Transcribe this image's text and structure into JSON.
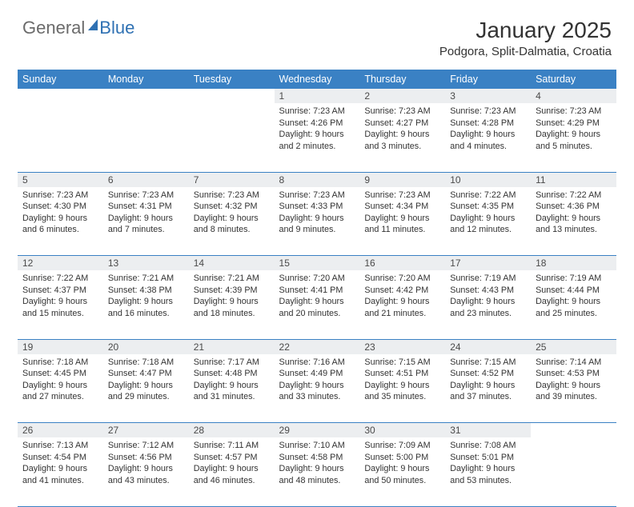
{
  "logo": {
    "part1": "General",
    "part2": "Blue"
  },
  "title": "January 2025",
  "location": "Podgora, Split-Dalmatia, Croatia",
  "colors": {
    "header_bg": "#3a81c4",
    "header_text": "#ffffff",
    "daynum_bg": "#eceef0",
    "text": "#333333",
    "logo_gray": "#6b6b6b",
    "logo_blue": "#2f71b3",
    "row_divider": "#3a81c4",
    "background": "#ffffff"
  },
  "typography": {
    "title_fontsize": 28,
    "location_fontsize": 15,
    "header_fontsize": 12.5,
    "daynum_fontsize": 12,
    "cell_fontsize": 10.8,
    "font_family": "Arial"
  },
  "days_of_week": [
    "Sunday",
    "Monday",
    "Tuesday",
    "Wednesday",
    "Thursday",
    "Friday",
    "Saturday"
  ],
  "weeks": [
    [
      null,
      null,
      null,
      {
        "n": "1",
        "sr": "Sunrise: 7:23 AM",
        "ss": "Sunset: 4:26 PM",
        "d1": "Daylight: 9 hours",
        "d2": "and 2 minutes."
      },
      {
        "n": "2",
        "sr": "Sunrise: 7:23 AM",
        "ss": "Sunset: 4:27 PM",
        "d1": "Daylight: 9 hours",
        "d2": "and 3 minutes."
      },
      {
        "n": "3",
        "sr": "Sunrise: 7:23 AM",
        "ss": "Sunset: 4:28 PM",
        "d1": "Daylight: 9 hours",
        "d2": "and 4 minutes."
      },
      {
        "n": "4",
        "sr": "Sunrise: 7:23 AM",
        "ss": "Sunset: 4:29 PM",
        "d1": "Daylight: 9 hours",
        "d2": "and 5 minutes."
      }
    ],
    [
      {
        "n": "5",
        "sr": "Sunrise: 7:23 AM",
        "ss": "Sunset: 4:30 PM",
        "d1": "Daylight: 9 hours",
        "d2": "and 6 minutes."
      },
      {
        "n": "6",
        "sr": "Sunrise: 7:23 AM",
        "ss": "Sunset: 4:31 PM",
        "d1": "Daylight: 9 hours",
        "d2": "and 7 minutes."
      },
      {
        "n": "7",
        "sr": "Sunrise: 7:23 AM",
        "ss": "Sunset: 4:32 PM",
        "d1": "Daylight: 9 hours",
        "d2": "and 8 minutes."
      },
      {
        "n": "8",
        "sr": "Sunrise: 7:23 AM",
        "ss": "Sunset: 4:33 PM",
        "d1": "Daylight: 9 hours",
        "d2": "and 9 minutes."
      },
      {
        "n": "9",
        "sr": "Sunrise: 7:23 AM",
        "ss": "Sunset: 4:34 PM",
        "d1": "Daylight: 9 hours",
        "d2": "and 11 minutes."
      },
      {
        "n": "10",
        "sr": "Sunrise: 7:22 AM",
        "ss": "Sunset: 4:35 PM",
        "d1": "Daylight: 9 hours",
        "d2": "and 12 minutes."
      },
      {
        "n": "11",
        "sr": "Sunrise: 7:22 AM",
        "ss": "Sunset: 4:36 PM",
        "d1": "Daylight: 9 hours",
        "d2": "and 13 minutes."
      }
    ],
    [
      {
        "n": "12",
        "sr": "Sunrise: 7:22 AM",
        "ss": "Sunset: 4:37 PM",
        "d1": "Daylight: 9 hours",
        "d2": "and 15 minutes."
      },
      {
        "n": "13",
        "sr": "Sunrise: 7:21 AM",
        "ss": "Sunset: 4:38 PM",
        "d1": "Daylight: 9 hours",
        "d2": "and 16 minutes."
      },
      {
        "n": "14",
        "sr": "Sunrise: 7:21 AM",
        "ss": "Sunset: 4:39 PM",
        "d1": "Daylight: 9 hours",
        "d2": "and 18 minutes."
      },
      {
        "n": "15",
        "sr": "Sunrise: 7:20 AM",
        "ss": "Sunset: 4:41 PM",
        "d1": "Daylight: 9 hours",
        "d2": "and 20 minutes."
      },
      {
        "n": "16",
        "sr": "Sunrise: 7:20 AM",
        "ss": "Sunset: 4:42 PM",
        "d1": "Daylight: 9 hours",
        "d2": "and 21 minutes."
      },
      {
        "n": "17",
        "sr": "Sunrise: 7:19 AM",
        "ss": "Sunset: 4:43 PM",
        "d1": "Daylight: 9 hours",
        "d2": "and 23 minutes."
      },
      {
        "n": "18",
        "sr": "Sunrise: 7:19 AM",
        "ss": "Sunset: 4:44 PM",
        "d1": "Daylight: 9 hours",
        "d2": "and 25 minutes."
      }
    ],
    [
      {
        "n": "19",
        "sr": "Sunrise: 7:18 AM",
        "ss": "Sunset: 4:45 PM",
        "d1": "Daylight: 9 hours",
        "d2": "and 27 minutes."
      },
      {
        "n": "20",
        "sr": "Sunrise: 7:18 AM",
        "ss": "Sunset: 4:47 PM",
        "d1": "Daylight: 9 hours",
        "d2": "and 29 minutes."
      },
      {
        "n": "21",
        "sr": "Sunrise: 7:17 AM",
        "ss": "Sunset: 4:48 PM",
        "d1": "Daylight: 9 hours",
        "d2": "and 31 minutes."
      },
      {
        "n": "22",
        "sr": "Sunrise: 7:16 AM",
        "ss": "Sunset: 4:49 PM",
        "d1": "Daylight: 9 hours",
        "d2": "and 33 minutes."
      },
      {
        "n": "23",
        "sr": "Sunrise: 7:15 AM",
        "ss": "Sunset: 4:51 PM",
        "d1": "Daylight: 9 hours",
        "d2": "and 35 minutes."
      },
      {
        "n": "24",
        "sr": "Sunrise: 7:15 AM",
        "ss": "Sunset: 4:52 PM",
        "d1": "Daylight: 9 hours",
        "d2": "and 37 minutes."
      },
      {
        "n": "25",
        "sr": "Sunrise: 7:14 AM",
        "ss": "Sunset: 4:53 PM",
        "d1": "Daylight: 9 hours",
        "d2": "and 39 minutes."
      }
    ],
    [
      {
        "n": "26",
        "sr": "Sunrise: 7:13 AM",
        "ss": "Sunset: 4:54 PM",
        "d1": "Daylight: 9 hours",
        "d2": "and 41 minutes."
      },
      {
        "n": "27",
        "sr": "Sunrise: 7:12 AM",
        "ss": "Sunset: 4:56 PM",
        "d1": "Daylight: 9 hours",
        "d2": "and 43 minutes."
      },
      {
        "n": "28",
        "sr": "Sunrise: 7:11 AM",
        "ss": "Sunset: 4:57 PM",
        "d1": "Daylight: 9 hours",
        "d2": "and 46 minutes."
      },
      {
        "n": "29",
        "sr": "Sunrise: 7:10 AM",
        "ss": "Sunset: 4:58 PM",
        "d1": "Daylight: 9 hours",
        "d2": "and 48 minutes."
      },
      {
        "n": "30",
        "sr": "Sunrise: 7:09 AM",
        "ss": "Sunset: 5:00 PM",
        "d1": "Daylight: 9 hours",
        "d2": "and 50 minutes."
      },
      {
        "n": "31",
        "sr": "Sunrise: 7:08 AM",
        "ss": "Sunset: 5:01 PM",
        "d1": "Daylight: 9 hours",
        "d2": "and 53 minutes."
      },
      null
    ]
  ]
}
